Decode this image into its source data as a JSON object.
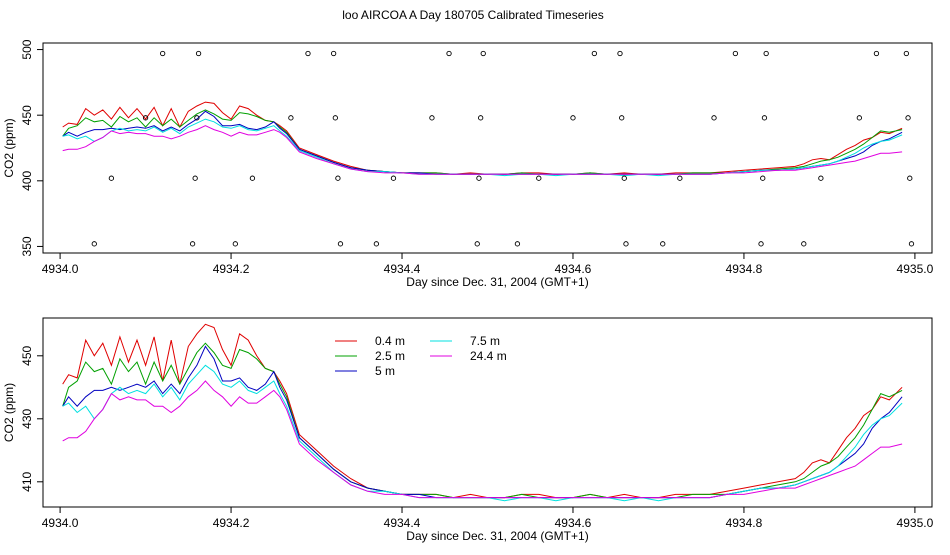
{
  "chart_data": {
    "title": "loo AIRCOA A  Day 180705  Calibrated Timeseries",
    "panels": [
      {
        "type": "scatter",
        "xlabel": "Day since Dec. 31, 2004 (GMT+1)",
        "ylabel": "CO2 (ppm)",
        "xlim": [
          4933.98,
          4935.02
        ],
        "ylim": [
          345,
          505
        ],
        "xticks": [
          4934.0,
          4934.2,
          4934.4,
          4934.6,
          4934.8,
          4935.0
        ],
        "xtick_labels": [
          "4934.0",
          "4934.2",
          "4934.4",
          "4934.6",
          "4934.8",
          "4935.0"
        ],
        "yticks": [
          350,
          400,
          450,
          500
        ],
        "ytick_labels": [
          "350",
          "400",
          "450",
          "500"
        ],
        "points": [
          {
            "x": 4934.04,
            "y": 352
          },
          {
            "x": 4934.06,
            "y": 402
          },
          {
            "x": 4934.1,
            "y": 448
          },
          {
            "x": 4934.12,
            "y": 497
          },
          {
            "x": 4934.155,
            "y": 352
          },
          {
            "x": 4934.158,
            "y": 402
          },
          {
            "x": 4934.16,
            "y": 448
          },
          {
            "x": 4934.162,
            "y": 497
          },
          {
            "x": 4934.205,
            "y": 352
          },
          {
            "x": 4934.225,
            "y": 402
          },
          {
            "x": 4934.27,
            "y": 448
          },
          {
            "x": 4934.29,
            "y": 497
          },
          {
            "x": 4934.32,
            "y": 497
          },
          {
            "x": 4934.322,
            "y": 448
          },
          {
            "x": 4934.325,
            "y": 402
          },
          {
            "x": 4934.328,
            "y": 352
          },
          {
            "x": 4934.37,
            "y": 352
          },
          {
            "x": 4934.39,
            "y": 402
          },
          {
            "x": 4934.435,
            "y": 448
          },
          {
            "x": 4934.455,
            "y": 497
          },
          {
            "x": 4934.488,
            "y": 352
          },
          {
            "x": 4934.49,
            "y": 402
          },
          {
            "x": 4934.492,
            "y": 448
          },
          {
            "x": 4934.495,
            "y": 497
          },
          {
            "x": 4934.535,
            "y": 352
          },
          {
            "x": 4934.56,
            "y": 402
          },
          {
            "x": 4934.6,
            "y": 448
          },
          {
            "x": 4934.625,
            "y": 497
          },
          {
            "x": 4934.655,
            "y": 497
          },
          {
            "x": 4934.657,
            "y": 448
          },
          {
            "x": 4934.66,
            "y": 402
          },
          {
            "x": 4934.662,
            "y": 352
          },
          {
            "x": 4934.705,
            "y": 352
          },
          {
            "x": 4934.725,
            "y": 402
          },
          {
            "x": 4934.765,
            "y": 448
          },
          {
            "x": 4934.79,
            "y": 497
          },
          {
            "x": 4934.82,
            "y": 352
          },
          {
            "x": 4934.822,
            "y": 402
          },
          {
            "x": 4934.824,
            "y": 448
          },
          {
            "x": 4934.826,
            "y": 497
          },
          {
            "x": 4934.87,
            "y": 352
          },
          {
            "x": 4934.89,
            "y": 402
          },
          {
            "x": 4934.935,
            "y": 448
          },
          {
            "x": 4934.955,
            "y": 497
          },
          {
            "x": 4934.99,
            "y": 497
          },
          {
            "x": 4934.992,
            "y": 448
          },
          {
            "x": 4934.994,
            "y": 402
          },
          {
            "x": 4934.996,
            "y": 352
          }
        ],
        "series_ref": "shared"
      },
      {
        "type": "line",
        "xlabel": "Day since Dec. 31, 2004 (GMT+1)",
        "ylabel": "CO2 (ppm)",
        "xlim": [
          4933.98,
          4935.02
        ],
        "ylim": [
          402,
          462
        ],
        "xticks": [
          4934.0,
          4934.2,
          4934.4,
          4934.6,
          4934.8,
          4935.0
        ],
        "xtick_labels": [
          "4934.0",
          "4934.2",
          "4934.4",
          "4934.6",
          "4934.8",
          "4935.0"
        ],
        "yticks": [
          410,
          430,
          450
        ],
        "ytick_labels": [
          "410",
          "430",
          "450"
        ],
        "legend": {
          "placement": "top-center",
          "entries": [
            {
              "label": "0.4 m",
              "color": "#e00000"
            },
            {
              "label": "7.5 m",
              "color": "#00e0e0"
            },
            {
              "label": "2.5 m",
              "color": "#00a000"
            },
            {
              "label": "24.4 m",
              "color": "#e000e0"
            },
            {
              "label": "5 m",
              "color": "#0000c0"
            }
          ]
        }
      }
    ],
    "x": [
      4934.003,
      4934.01,
      4934.02,
      4934.03,
      4934.04,
      4934.05,
      4934.06,
      4934.07,
      4934.08,
      4934.09,
      4934.1,
      4934.11,
      4934.12,
      4934.13,
      4934.14,
      4934.15,
      4934.16,
      4934.17,
      4934.18,
      4934.19,
      4934.2,
      4934.21,
      4934.22,
      4934.23,
      4934.24,
      4934.25,
      4934.257,
      4934.265,
      4934.28,
      4934.3,
      4934.32,
      4934.34,
      4934.36,
      4934.38,
      4934.4,
      4934.42,
      4934.44,
      4934.46,
      4934.48,
      4934.5,
      4934.52,
      4934.54,
      4934.56,
      4934.58,
      4934.6,
      4934.62,
      4934.64,
      4934.66,
      4934.68,
      4934.7,
      4934.72,
      4934.74,
      4934.76,
      4934.78,
      4934.8,
      4934.82,
      4934.84,
      4934.86,
      4934.87,
      4934.88,
      4934.89,
      4934.9,
      4934.91,
      4934.92,
      4934.93,
      4934.94,
      4934.95,
      4934.96,
      4934.97,
      4934.985
    ],
    "series": [
      {
        "name": "0.4 m",
        "color": "#e00000",
        "values": [
          441,
          444,
          443,
          455,
          450,
          454,
          447,
          456,
          448,
          455,
          447,
          456,
          442,
          455,
          441,
          453,
          457,
          460,
          459,
          452,
          447,
          457,
          455,
          450,
          446,
          445,
          442,
          438,
          425,
          420,
          415,
          411,
          408,
          407,
          406,
          406,
          406,
          405,
          406,
          405,
          405,
          406,
          406,
          405,
          405,
          406,
          405,
          406,
          405,
          405,
          406,
          406,
          406,
          407,
          408,
          409,
          410,
          411,
          413,
          416,
          417,
          416,
          420,
          424,
          427,
          431,
          433,
          437,
          436,
          440
        ]
      },
      {
        "name": "2.5 m",
        "color": "#00a000",
        "values": [
          434,
          440,
          442,
          448,
          445,
          446,
          441,
          449,
          445,
          448,
          441,
          448,
          442,
          447,
          441,
          446,
          451,
          454,
          451,
          447,
          446,
          452,
          451,
          449,
          446,
          445,
          441,
          437,
          424,
          419,
          414,
          410,
          408,
          407,
          406,
          406,
          406,
          405,
          405,
          405,
          405,
          406,
          405,
          405,
          405,
          406,
          405,
          405,
          405,
          405,
          405,
          406,
          406,
          406,
          407,
          408,
          409,
          410,
          411,
          413,
          415,
          416,
          418,
          421,
          424,
          428,
          433,
          438,
          437,
          439
        ]
      },
      {
        "name": "5 m",
        "color": "#0000c0",
        "values": [
          434,
          437,
          434,
          437,
          439,
          439,
          440,
          439,
          440,
          441,
          440,
          442,
          438,
          441,
          438,
          443,
          447,
          453,
          449,
          442,
          442,
          443,
          440,
          439,
          441,
          445,
          440,
          436,
          424,
          419,
          414,
          410,
          408,
          407,
          406,
          406,
          405,
          405,
          405,
          405,
          405,
          405,
          405,
          405,
          405,
          405,
          405,
          405,
          405,
          405,
          405,
          405,
          405,
          406,
          407,
          408,
          408,
          409,
          410,
          411,
          412,
          413,
          415,
          417,
          419,
          422,
          427,
          430,
          432,
          437
        ]
      },
      {
        "name": "7.5 m",
        "color": "#00e0e0",
        "values": [
          434,
          435,
          432,
          434,
          430,
          433,
          438,
          440,
          438,
          439,
          438,
          441,
          437,
          440,
          436,
          441,
          444,
          447,
          445,
          441,
          440,
          442,
          439,
          438,
          440,
          442,
          438,
          434,
          423,
          418,
          413,
          409,
          407,
          407,
          406,
          405,
          405,
          405,
          405,
          405,
          404,
          405,
          405,
          404,
          405,
          405,
          405,
          404,
          405,
          404,
          405,
          405,
          405,
          406,
          407,
          408,
          408,
          409,
          410,
          411,
          412,
          413,
          415,
          418,
          421,
          425,
          428,
          430,
          431,
          435
        ]
      },
      {
        "name": "24.4 m",
        "color": "#e000e0",
        "values": [
          423,
          424,
          424,
          426,
          430,
          433,
          438,
          436,
          437,
          436,
          436,
          434,
          434,
          432,
          434,
          437,
          439,
          442,
          439,
          437,
          434,
          437,
          435,
          435,
          437,
          439,
          437,
          433,
          422,
          417,
          413,
          409,
          407,
          406,
          406,
          405,
          405,
          405,
          405,
          405,
          405,
          405,
          405,
          405,
          405,
          405,
          405,
          405,
          405,
          405,
          405,
          405,
          405,
          406,
          406,
          407,
          408,
          408,
          409,
          410,
          411,
          412,
          413,
          414,
          415,
          417,
          419,
          421,
          421,
          422
        ]
      }
    ]
  }
}
